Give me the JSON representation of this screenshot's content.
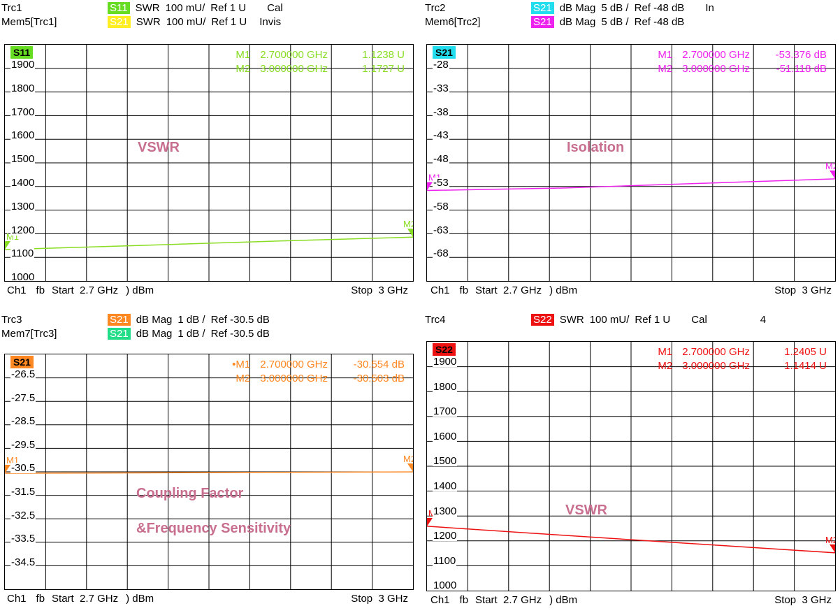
{
  "quads": [
    {
      "id": "q1",
      "trace": {
        "name": "Trc1",
        "param": "S11",
        "param_bg": "#66dd22",
        "fmt": "SWR",
        "scale": "100 mU/",
        "ref": "Ref 1 U",
        "status": "Cal"
      },
      "mem": {
        "name": "Mem5[Trc1]",
        "param": "S21",
        "param_bg": "#ffee22",
        "fmt": "SWR",
        "scale": "100 mU/",
        "ref": "Ref 1 U",
        "status": "Invis"
      },
      "tag": {
        "text": "S11",
        "bg": "#66dd22",
        "fg": "#000000"
      },
      "markers": [
        {
          "label": "M1",
          "freq": "2.700000 GHz",
          "value": "1.1238 U"
        },
        {
          "label": "M2",
          "freq": "3.000000 GHz",
          "value": "1.1727 U"
        }
      ],
      "marker_color": "#88dd22",
      "annotation": [
        "VSWR"
      ],
      "footer": {
        "ch": "Ch1",
        "fb": "fb",
        "start": "Start  2.7 GHz",
        "pwr": " ) dBm",
        "stop": "Stop  3 GHz"
      },
      "ytick_labels": [
        "1900",
        "1800",
        "1700",
        "1600",
        "1500",
        "1400",
        "1300",
        "1200",
        "1100",
        "1000"
      ],
      "marker_names": [
        "M1",
        "M2"
      ]
    },
    {
      "id": "q2",
      "trace": {
        "name": "Trc2",
        "param": "S21",
        "param_bg": "#22ddee",
        "fmt": "dB Mag",
        "scale": "5 dB /",
        "ref": "Ref -48 dB",
        "status": "In"
      },
      "mem": {
        "name": "Mem6[Trc2]",
        "param": "S21",
        "param_bg": "#ee22ee",
        "fmt": "dB Mag",
        "scale": "5 dB /",
        "ref": "Ref -48 dB",
        "status": ""
      },
      "tag": {
        "text": "S21",
        "bg": "#22ddee",
        "fg": "#000000"
      },
      "markers": [
        {
          "label": "M1",
          "freq": "2.700000 GHz",
          "value": "-53.376 dB"
        },
        {
          "label": "M2",
          "freq": "3.000000 GHz",
          "value": "-51.118 dB"
        }
      ],
      "marker_color": "#ee22ee",
      "annotation": [
        "Isolation"
      ],
      "footer": {
        "ch": "Ch1",
        "fb": "fb",
        "start": "Start  2.7 GHz",
        "pwr": " ) dBm",
        "stop": "Stop  3 GHz"
      },
      "ytick_labels": [
        "-28",
        "-33",
        "-38",
        "-43",
        "-48",
        "-53",
        "-58",
        "-63",
        "-68"
      ],
      "marker_names": [
        "M1",
        "M2"
      ]
    },
    {
      "id": "q3",
      "trace": {
        "name": "Trc3",
        "param": "S21",
        "param_bg": "#ff8822",
        "fmt": "dB Mag",
        "scale": "1 dB /",
        "ref": "Ref -30.5 dB",
        "status": ""
      },
      "mem": {
        "name": "Mem7[Trc3]",
        "param": "S21",
        "param_bg": "#22dd88",
        "fmt": "dB Mag",
        "scale": "1 dB /",
        "ref": "Ref -30.5 dB",
        "status": ""
      },
      "tag": {
        "text": "S21",
        "bg": "#ff8822",
        "fg": "#000000"
      },
      "markers": [
        {
          "label": "•M1",
          "freq": "2.700000 GHz",
          "value": "-30.554 dB"
        },
        {
          "label": "M2",
          "freq": "3.000000 GHz",
          "value": "-30.503 dB"
        }
      ],
      "marker_color": "#ff8822",
      "annotation": [
        "Coupling Factor",
        "&Frequency Sensitivity"
      ],
      "footer": {
        "ch": "Ch1",
        "fb": "fb",
        "start": "Start  2.7 GHz",
        "pwr": " ) dBm",
        "stop": "Stop  3 GHz"
      },
      "ytick_labels": [
        "-26.5",
        "-27.5",
        "-28.5",
        "-29.5",
        "-30.5",
        "-31.5",
        "-32.5",
        "-33.5",
        "-34.5"
      ],
      "marker_names": [
        "M1",
        "M2"
      ]
    },
    {
      "id": "q4",
      "trace": {
        "name": "Trc4",
        "param": "S22",
        "param_bg": "#ee1111",
        "fmt": "SWR",
        "scale": "100 mU/",
        "ref": "Ref 1 U",
        "status": "Cal",
        "extra": "4"
      },
      "mem": null,
      "tag": {
        "text": "S22",
        "bg": "#ee1111",
        "fg": "#000000"
      },
      "markers": [
        {
          "label": "M1",
          "freq": "2.700000 GHz",
          "value": "1.2405 U"
        },
        {
          "label": "M2",
          "freq": "3.000000 GHz",
          "value": "1.1414 U"
        }
      ],
      "marker_color": "#ee1111",
      "annotation": [
        "VSWR"
      ],
      "footer": {
        "ch": "Ch1",
        "fb": "fb",
        "start": "Start  2.7 GHz",
        "pwr": " ) dBm",
        "stop": "Stop  3 GHz"
      },
      "ytick_labels": [
        "1900",
        "1800",
        "1700",
        "1600",
        "1500",
        "1400",
        "1300",
        "1200",
        "1100",
        "1000"
      ],
      "marker_names": [
        "M1",
        "M2"
      ]
    }
  ],
  "chart_data": [
    {
      "type": "line",
      "title": "",
      "xlabel": "",
      "ylabel": "",
      "x_unit": "GHz",
      "xlim": [
        2.7,
        3.0
      ],
      "ylim": [
        1000,
        1930
      ],
      "grid": true,
      "series": [
        {
          "name": "S11",
          "color": "#88dd22",
          "x": [
            2.7,
            2.8,
            2.9,
            3.0
          ],
          "y": [
            1123.8,
            1140,
            1157,
            1172.7
          ]
        }
      ]
    },
    {
      "type": "line",
      "title": "",
      "xlabel": "",
      "ylabel": "",
      "x_unit": "GHz",
      "xlim": [
        2.7,
        3.0
      ],
      "ylim": [
        -71,
        -25
      ],
      "grid": true,
      "series": [
        {
          "name": "S21",
          "color": "#ee22ee",
          "x": [
            2.7,
            2.8,
            2.9,
            3.0
          ],
          "y": [
            -53.376,
            -52.9,
            -52.0,
            -51.118
          ]
        }
      ]
    },
    {
      "type": "line",
      "title": "",
      "xlabel": "",
      "ylabel": "",
      "x_unit": "GHz",
      "xlim": [
        2.7,
        3.0
      ],
      "ylim": [
        -35.1,
        -25.9
      ],
      "grid": true,
      "series": [
        {
          "name": "S21",
          "color": "#ff8822",
          "x": [
            2.7,
            2.8,
            2.9,
            3.0
          ],
          "y": [
            -30.554,
            -30.54,
            -30.52,
            -30.503
          ]
        }
      ]
    },
    {
      "type": "line",
      "title": "",
      "xlabel": "",
      "ylabel": "",
      "x_unit": "GHz",
      "xlim": [
        2.7,
        3.0
      ],
      "ylim": [
        1000,
        1930
      ],
      "grid": true,
      "series": [
        {
          "name": "S22",
          "color": "#ee1111",
          "x": [
            2.7,
            2.8,
            2.9,
            3.0
          ],
          "y": [
            1240.5,
            1207,
            1174,
            1141.4
          ]
        }
      ]
    }
  ]
}
